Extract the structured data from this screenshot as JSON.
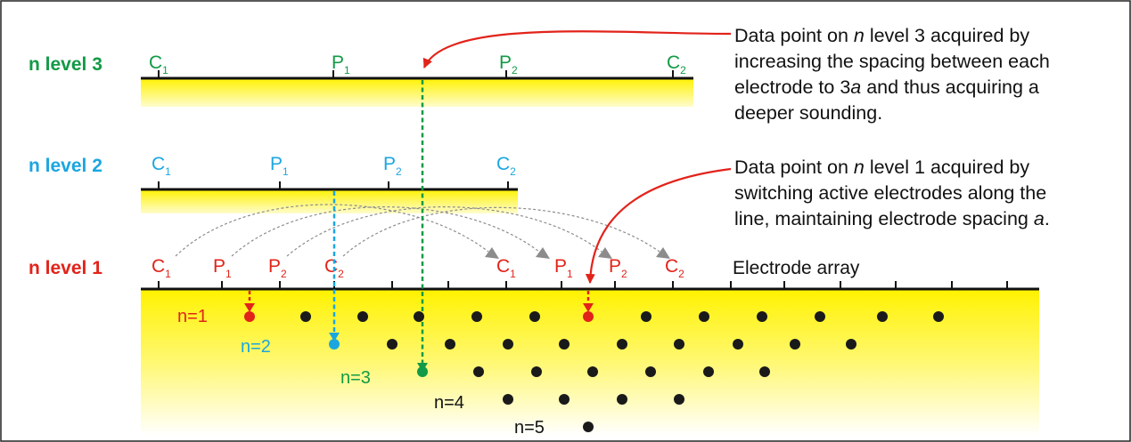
{
  "levels": {
    "level1": "n level 1",
    "level2": "n level 2",
    "level3": "n level 3"
  },
  "electrode_labels": {
    "C": "C",
    "P": "P",
    "sub1": "1",
    "sub2": "2"
  },
  "electrode_array_label": "Electrode array",
  "n_labels": [
    "n=1",
    "n=2",
    "n=3",
    "n=4",
    "n=5"
  ],
  "annotation_top": {
    "line1_pre": "Data point on ",
    "line1_italic": "n",
    "line1_post": " level 3 acquired by",
    "line2": "increasing the spacing between each",
    "line3_pre": "electrode to 3",
    "line3_italic": "a",
    "line3_post": " and thus acquiring a",
    "line4": "deeper sounding."
  },
  "annotation_bottom": {
    "line1_pre": "Data point on ",
    "line1_italic": "n",
    "line1_post": " level 1 acquired by",
    "line2": "switching active electrodes along the",
    "line3_pre": "line, maintaining electrode spacing ",
    "line3_italic": "a",
    "line3_post": "."
  },
  "colors": {
    "level1": "#e2231a",
    "level2": "#1ba6e0",
    "level3": "#129a46",
    "ground": "#fff200",
    "dots": "#1a1a1a",
    "curves": "#8c8c8c"
  }
}
